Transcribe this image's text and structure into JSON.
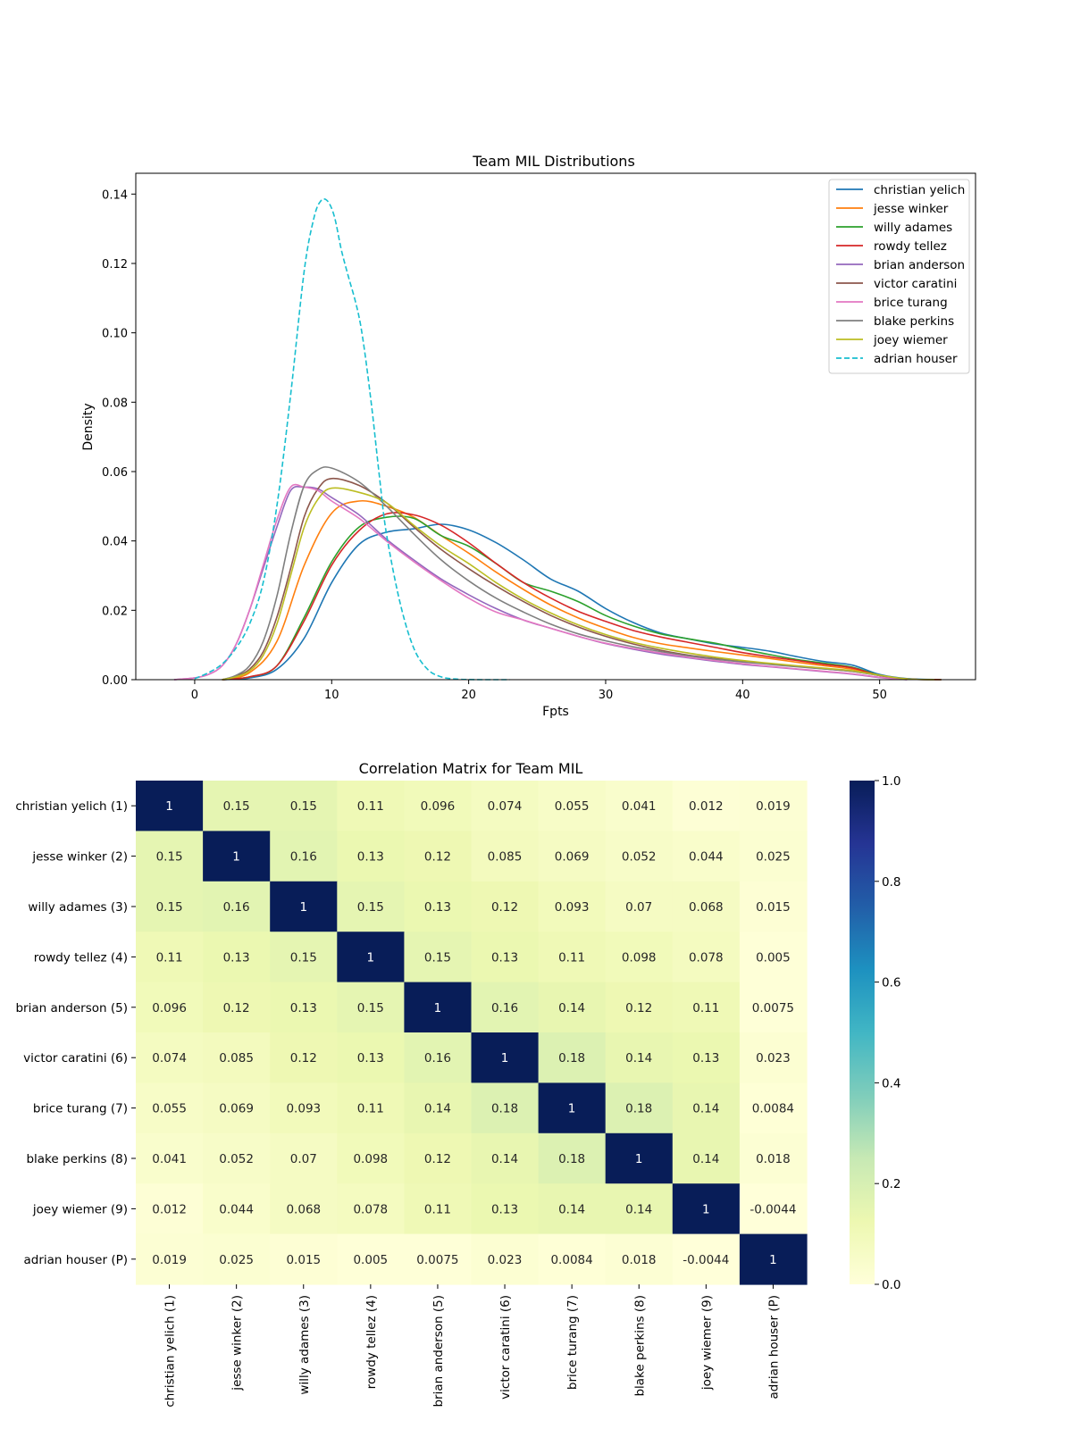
{
  "chart_data": [
    {
      "type": "line",
      "title": "Team MIL Distributions",
      "xlabel": "Fpts",
      "ylabel": "Density",
      "xlim": [
        -4.3,
        57
      ],
      "ylim": [
        0,
        0.146
      ],
      "xticks": [
        0,
        10,
        20,
        30,
        40,
        50
      ],
      "yticks": [
        0.0,
        0.02,
        0.04,
        0.06,
        0.08,
        0.1,
        0.12,
        0.14
      ],
      "ytick_labels": [
        "0.00",
        "0.02",
        "0.04",
        "0.06",
        "0.08",
        "0.10",
        "0.12",
        "0.14"
      ],
      "legend_position": "top-right",
      "grid": false,
      "series": [
        {
          "name": "christian yelich",
          "color": "#1f77b4",
          "dash": false,
          "x": [
            2,
            4,
            6,
            8,
            10,
            12,
            14,
            16,
            18,
            20,
            22,
            24,
            26,
            28,
            30,
            32,
            34,
            36,
            38,
            40,
            42,
            44,
            46,
            48,
            50,
            52,
            54.5
          ],
          "y": [
            0,
            0.0005,
            0.003,
            0.012,
            0.028,
            0.039,
            0.0425,
            0.0435,
            0.0448,
            0.0432,
            0.0395,
            0.0345,
            0.029,
            0.0255,
            0.0205,
            0.0165,
            0.0135,
            0.0118,
            0.0103,
            0.0093,
            0.0082,
            0.0066,
            0.0052,
            0.0042,
            0.0015,
            0.0003,
            0
          ]
        },
        {
          "name": "jesse winker",
          "color": "#ff7f0e",
          "dash": false,
          "x": [
            2,
            4,
            6,
            8,
            10,
            12,
            14,
            16,
            18,
            20,
            22,
            24,
            26,
            28,
            30,
            32,
            34,
            36,
            38,
            40,
            42,
            44,
            46,
            48,
            50,
            52,
            54.5
          ],
          "y": [
            0,
            0.002,
            0.011,
            0.033,
            0.048,
            0.0515,
            0.05,
            0.0468,
            0.0415,
            0.0365,
            0.031,
            0.026,
            0.0215,
            0.0178,
            0.0148,
            0.0122,
            0.0104,
            0.0092,
            0.0081,
            0.0071,
            0.0061,
            0.005,
            0.004,
            0.003,
            0.0012,
            0.0002,
            0
          ]
        },
        {
          "name": "willy adames",
          "color": "#2ca02c",
          "dash": false,
          "x": [
            2,
            4,
            6,
            8,
            10,
            12,
            14,
            16,
            18,
            20,
            22,
            24,
            26,
            28,
            30,
            32,
            34,
            36,
            38,
            40,
            42,
            44,
            46,
            48,
            50,
            52,
            54.5
          ],
          "y": [
            0,
            0.0008,
            0.004,
            0.018,
            0.034,
            0.044,
            0.0468,
            0.0465,
            0.0415,
            0.0385,
            0.0335,
            0.028,
            0.0255,
            0.0225,
            0.0185,
            0.0155,
            0.0132,
            0.0118,
            0.0105,
            0.0088,
            0.0072,
            0.0058,
            0.0047,
            0.0036,
            0.0013,
            0.0002,
            0
          ]
        },
        {
          "name": "rowdy tellez",
          "color": "#d62728",
          "dash": false,
          "x": [
            2,
            4,
            6,
            8,
            10,
            12,
            14,
            16,
            18,
            20,
            22,
            24,
            26,
            28,
            30,
            32,
            34,
            36,
            38,
            40,
            42,
            44,
            46,
            48,
            50,
            52,
            54.5
          ],
          "y": [
            0,
            0.0008,
            0.004,
            0.017,
            0.033,
            0.043,
            0.0478,
            0.0475,
            0.0445,
            0.0395,
            0.0335,
            0.028,
            0.0235,
            0.0197,
            0.0168,
            0.0142,
            0.0123,
            0.0108,
            0.0093,
            0.0078,
            0.0066,
            0.0055,
            0.0044,
            0.0034,
            0.0012,
            0.0002,
            0
          ]
        },
        {
          "name": "brian anderson",
          "color": "#9467bd",
          "dash": false,
          "x": [
            -1.5,
            0,
            1,
            2,
            3,
            4,
            5,
            6,
            7,
            8,
            9,
            10,
            12,
            14,
            16,
            18,
            20,
            22,
            24,
            26,
            28,
            30,
            32,
            34,
            36,
            38,
            40,
            42,
            44,
            46,
            48,
            50,
            52
          ],
          "y": [
            0,
            0.0005,
            0.0015,
            0.004,
            0.01,
            0.02,
            0.032,
            0.044,
            0.0545,
            0.0555,
            0.055,
            0.0525,
            0.0475,
            0.0405,
            0.0345,
            0.029,
            0.0245,
            0.0205,
            0.0172,
            0.0148,
            0.0125,
            0.0104,
            0.0088,
            0.0074,
            0.0063,
            0.0053,
            0.0044,
            0.0037,
            0.003,
            0.0023,
            0.0016,
            0.0006,
            0
          ]
        },
        {
          "name": "victor caratini",
          "color": "#8c564b",
          "dash": false,
          "x": [
            2,
            3,
            4,
            5,
            6,
            7,
            8,
            9,
            10,
            12,
            14,
            16,
            18,
            20,
            22,
            24,
            26,
            28,
            30,
            32,
            34,
            36,
            38,
            40,
            42,
            44,
            46,
            48,
            50,
            52,
            54
          ],
          "y": [
            0,
            0.001,
            0.003,
            0.008,
            0.018,
            0.032,
            0.047,
            0.055,
            0.058,
            0.056,
            0.051,
            0.044,
            0.0375,
            0.032,
            0.027,
            0.0225,
            0.0185,
            0.0152,
            0.0125,
            0.0103,
            0.0085,
            0.0071,
            0.0061,
            0.0052,
            0.0045,
            0.0038,
            0.0031,
            0.0024,
            0.0012,
            0.0002,
            0
          ]
        },
        {
          "name": "brice turang",
          "color": "#e377c2",
          "dash": false,
          "x": [
            -1.5,
            0,
            1,
            2,
            3,
            4,
            5,
            6,
            7,
            8,
            9,
            10,
            12,
            14,
            16,
            18,
            20,
            22,
            24,
            26,
            28,
            30,
            32,
            34,
            36,
            38,
            40,
            42,
            44,
            46,
            48,
            50,
            52
          ],
          "y": [
            0,
            0.0005,
            0.0015,
            0.004,
            0.01,
            0.02,
            0.033,
            0.046,
            0.0555,
            0.0555,
            0.0545,
            0.0515,
            0.0465,
            0.04,
            0.034,
            0.0285,
            0.0235,
            0.0195,
            0.0172,
            0.0148,
            0.0125,
            0.0105,
            0.009,
            0.0077,
            0.0065,
            0.0055,
            0.0046,
            0.0038,
            0.0031,
            0.0024,
            0.0017,
            0.0007,
            0
          ]
        },
        {
          "name": "blake perkins",
          "color": "#7f7f7f",
          "dash": false,
          "x": [
            2,
            3,
            4,
            5,
            6,
            7,
            8,
            9,
            10,
            12,
            14,
            16,
            18,
            20,
            22,
            24,
            26,
            28,
            30,
            32,
            34,
            36,
            38,
            40,
            42,
            44,
            46,
            48,
            50,
            52,
            54
          ],
          "y": [
            0,
            0.0012,
            0.004,
            0.011,
            0.024,
            0.042,
            0.056,
            0.0605,
            0.061,
            0.057,
            0.05,
            0.042,
            0.0345,
            0.0285,
            0.0235,
            0.0195,
            0.016,
            0.0132,
            0.0112,
            0.0095,
            0.0081,
            0.0069,
            0.0059,
            0.0051,
            0.0044,
            0.0037,
            0.0031,
            0.0024,
            0.0012,
            0.0002,
            0
          ]
        },
        {
          "name": "joey wiemer",
          "color": "#bcbd22",
          "dash": false,
          "x": [
            2,
            3,
            4,
            5,
            6,
            7,
            8,
            9,
            10,
            12,
            14,
            16,
            18,
            20,
            22,
            24,
            26,
            28,
            30,
            32,
            34,
            36,
            38,
            40,
            42,
            44,
            46,
            48,
            50,
            52,
            54
          ],
          "y": [
            0,
            0.0008,
            0.0025,
            0.007,
            0.016,
            0.03,
            0.044,
            0.052,
            0.0552,
            0.054,
            0.051,
            0.0445,
            0.0385,
            0.0335,
            0.028,
            0.0232,
            0.0192,
            0.0158,
            0.013,
            0.0108,
            0.0091,
            0.0077,
            0.0065,
            0.0055,
            0.0047,
            0.004,
            0.0033,
            0.0026,
            0.0013,
            0.0002,
            0
          ]
        },
        {
          "name": "adrian houser",
          "color": "#17becf",
          "dash": true,
          "x": [
            0,
            1,
            2,
            3,
            4,
            5,
            6,
            7,
            8,
            8.7,
            9.2,
            9.7,
            10.2,
            10.7,
            11.2,
            11.7,
            12.1,
            12.5,
            13,
            13.5,
            14,
            15,
            16,
            17,
            18,
            19,
            20,
            21,
            22,
            23
          ],
          "y": [
            0.0003,
            0.002,
            0.0045,
            0.009,
            0.016,
            0.028,
            0.05,
            0.082,
            0.118,
            0.133,
            0.138,
            0.138,
            0.1335,
            0.124,
            0.1165,
            0.1095,
            0.1025,
            0.092,
            0.076,
            0.058,
            0.042,
            0.022,
            0.009,
            0.003,
            0.0008,
            0.0002,
            5e-05,
            0,
            0,
            0
          ]
        }
      ]
    },
    {
      "type": "heatmap",
      "title": "Correlation Matrix for Team MIL",
      "colormap": "YlGnBu",
      "vmin": 0.0,
      "vmax": 1.0,
      "colorbar_ticks": [
        0.0,
        0.2,
        0.4,
        0.6,
        0.8,
        1.0
      ],
      "colorbar_tick_labels": [
        "0.0",
        "0.2",
        "0.4",
        "0.6",
        "0.8",
        "1.0"
      ],
      "labels": [
        "christian yelich (1)",
        "jesse winker (2)",
        "willy adames (3)",
        "rowdy tellez (4)",
        "brian anderson (5)",
        "victor caratini (6)",
        "brice turang (7)",
        "blake perkins (8)",
        "joey wiemer (9)",
        "adrian houser (P)"
      ],
      "values": [
        [
          1,
          0.15,
          0.15,
          0.11,
          0.096,
          0.074,
          0.055,
          0.041,
          0.012,
          0.019
        ],
        [
          0.15,
          1,
          0.16,
          0.13,
          0.12,
          0.085,
          0.069,
          0.052,
          0.044,
          0.025
        ],
        [
          0.15,
          0.16,
          1,
          0.15,
          0.13,
          0.12,
          0.093,
          0.07,
          0.068,
          0.015
        ],
        [
          0.11,
          0.13,
          0.15,
          1,
          0.15,
          0.13,
          0.11,
          0.098,
          0.078,
          0.005
        ],
        [
          0.096,
          0.12,
          0.13,
          0.15,
          1,
          0.16,
          0.14,
          0.12,
          0.11,
          0.0075
        ],
        [
          0.074,
          0.085,
          0.12,
          0.13,
          0.16,
          1,
          0.18,
          0.14,
          0.13,
          0.023
        ],
        [
          0.055,
          0.069,
          0.093,
          0.11,
          0.14,
          0.18,
          1,
          0.18,
          0.14,
          0.0084
        ],
        [
          0.041,
          0.052,
          0.07,
          0.098,
          0.12,
          0.14,
          0.18,
          1,
          0.14,
          0.018
        ],
        [
          0.012,
          0.044,
          0.068,
          0.078,
          0.11,
          0.13,
          0.14,
          0.14,
          1,
          -0.0044
        ],
        [
          0.019,
          0.025,
          0.015,
          0.005,
          0.0075,
          0.023,
          0.0084,
          0.018,
          -0.0044,
          1
        ]
      ]
    }
  ]
}
